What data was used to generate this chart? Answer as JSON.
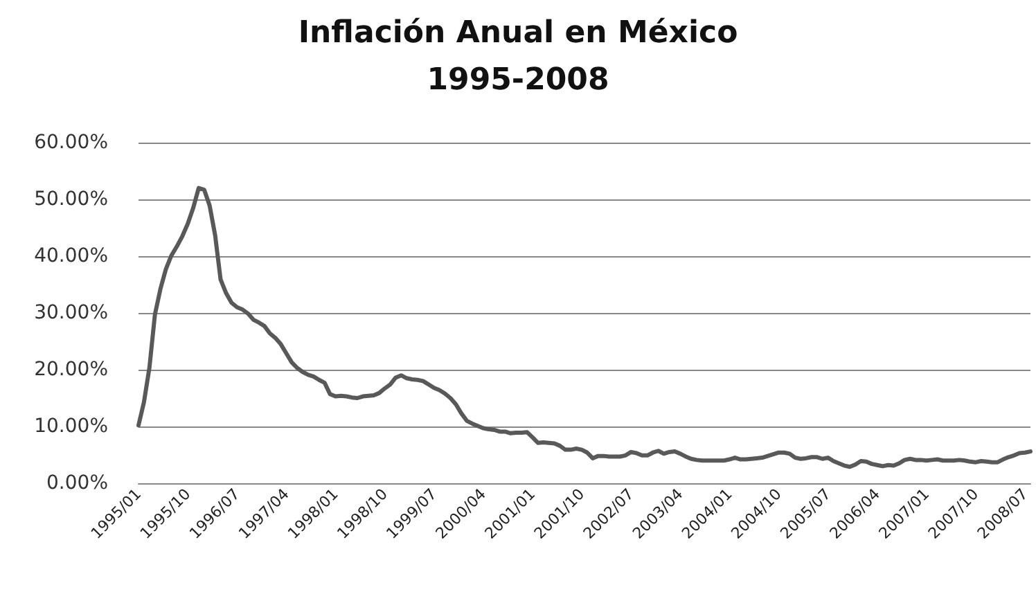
{
  "chart_data": {
    "type": "line",
    "title": "Inflación Anual en México",
    "subtitle": "1995-2008",
    "categories": [
      "1995/01",
      null,
      null,
      null,
      null,
      null,
      null,
      null,
      null,
      "1995/10",
      null,
      null,
      null,
      null,
      null,
      null,
      null,
      null,
      "1996/07",
      null,
      null,
      null,
      null,
      null,
      null,
      null,
      null,
      "1997/04",
      null,
      null,
      null,
      null,
      null,
      null,
      null,
      null,
      "1998/01",
      null,
      null,
      null,
      null,
      null,
      null,
      null,
      null,
      "1998/10",
      null,
      null,
      null,
      null,
      null,
      null,
      null,
      null,
      "1999/07",
      null,
      null,
      null,
      null,
      null,
      null,
      null,
      null,
      "2000/04",
      null,
      null,
      null,
      null,
      null,
      null,
      null,
      null,
      "2001/01",
      null,
      null,
      null,
      null,
      null,
      null,
      null,
      null,
      "2001/10",
      null,
      null,
      null,
      null,
      null,
      null,
      null,
      null,
      "2002/07",
      null,
      null,
      null,
      null,
      null,
      null,
      null,
      null,
      "2003/04",
      null,
      null,
      null,
      null,
      null,
      null,
      null,
      null,
      "2004/01",
      null,
      null,
      null,
      null,
      null,
      null,
      null,
      null,
      "2004/10",
      null,
      null,
      null,
      null,
      null,
      null,
      null,
      null,
      "2005/07",
      null,
      null,
      null,
      null,
      null,
      null,
      null,
      null,
      "2006/04",
      null,
      null,
      null,
      null,
      null,
      null,
      null,
      null,
      "2007/01",
      null,
      null,
      null,
      null,
      null,
      null,
      null,
      null,
      "2007/10",
      null,
      null,
      null,
      null,
      null,
      null,
      null,
      null,
      "2008/07",
      null
    ],
    "series": [
      {
        "color": "#595959",
        "values": [
          10.2,
          14.3,
          20.4,
          29.7,
          34.2,
          37.7,
          40.1,
          41.7,
          43.5,
          45.7,
          48.5,
          52.0,
          51.7,
          48.9,
          43.7,
          35.9,
          33.5,
          31.8,
          31.0,
          30.6,
          29.9,
          28.8,
          28.3,
          27.7,
          26.4,
          25.6,
          24.5,
          22.9,
          21.3,
          20.3,
          19.6,
          19.1,
          18.8,
          18.2,
          17.7,
          15.7,
          15.3,
          15.4,
          15.3,
          15.1,
          15.0,
          15.3,
          15.4,
          15.5,
          15.9,
          16.7,
          17.4,
          18.6,
          19.0,
          18.5,
          18.3,
          18.2,
          18.0,
          17.4,
          16.8,
          16.4,
          15.8,
          15.0,
          13.9,
          12.3,
          11.0,
          10.5,
          10.1,
          9.7,
          9.5,
          9.4,
          9.1,
          9.1,
          8.8,
          8.9,
          8.9,
          9.0,
          8.1,
          7.1,
          7.2,
          7.1,
          7.0,
          6.6,
          5.9,
          5.9,
          6.1,
          5.9,
          5.4,
          4.4,
          4.8,
          4.8,
          4.7,
          4.7,
          4.7,
          4.9,
          5.5,
          5.3,
          4.9,
          4.9,
          5.4,
          5.7,
          5.2,
          5.5,
          5.6,
          5.2,
          4.7,
          4.3,
          4.1,
          4.0,
          4.0,
          4.0,
          4.0,
          4.0,
          4.2,
          4.5,
          4.2,
          4.2,
          4.3,
          4.4,
          4.5,
          4.8,
          5.1,
          5.4,
          5.4,
          5.2,
          4.5,
          4.3,
          4.4,
          4.6,
          4.6,
          4.3,
          4.5,
          3.9,
          3.5,
          3.1,
          2.9,
          3.3,
          3.9,
          3.8,
          3.4,
          3.2,
          3.0,
          3.2,
          3.1,
          3.5,
          4.1,
          4.3,
          4.1,
          4.1,
          4.0,
          4.1,
          4.2,
          4.0,
          4.0,
          4.0,
          4.1,
          4.0,
          3.8,
          3.7,
          3.9,
          3.8,
          3.7,
          3.7,
          4.2,
          4.6,
          4.9,
          5.3,
          5.4,
          5.6
        ]
      }
    ],
    "ylim": [
      0,
      60
    ],
    "yticks": [
      {
        "value": 0,
        "label": "0.00%"
      },
      {
        "value": 10,
        "label": "10.00%"
      },
      {
        "value": 20,
        "label": "20.00%"
      },
      {
        "value": 30,
        "label": "30.00%"
      },
      {
        "value": 40,
        "label": "40.00%"
      },
      {
        "value": 50,
        "label": "50.00%"
      },
      {
        "value": 60,
        "label": "60.00%"
      }
    ],
    "grid": "y",
    "marker": "none",
    "line_style": "solid"
  }
}
